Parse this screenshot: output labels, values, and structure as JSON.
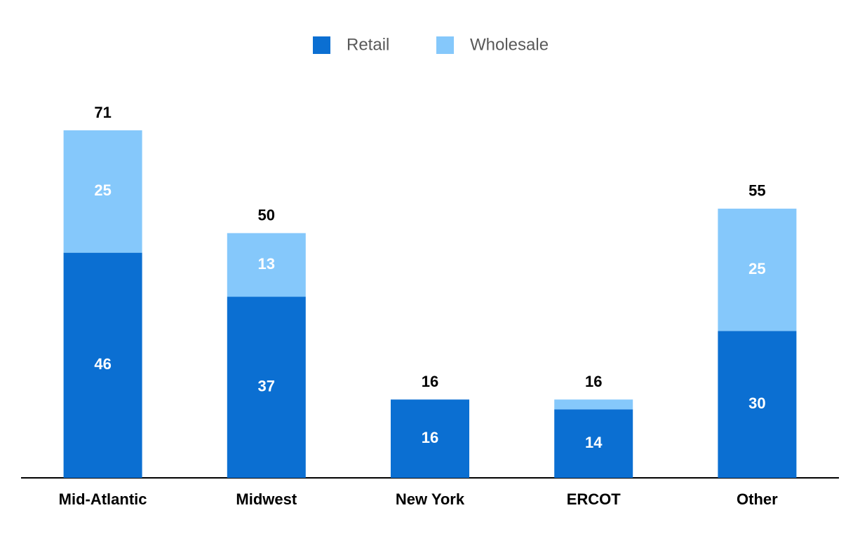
{
  "chart_data": {
    "type": "stacked-bar",
    "categories": [
      "Mid-Atlantic",
      "Midwest",
      "New York",
      "ERCOT",
      "Other"
    ],
    "series": [
      {
        "name": "Retail",
        "color": "#0b6fd2",
        "values": [
          46,
          37,
          16,
          14,
          30
        ]
      },
      {
        "name": "Wholesale",
        "color": "#85c8fb",
        "values": [
          25,
          13,
          0,
          2,
          25
        ]
      }
    ],
    "totals": [
      71,
      50,
      16,
      16,
      55
    ],
    "legend": "top"
  }
}
